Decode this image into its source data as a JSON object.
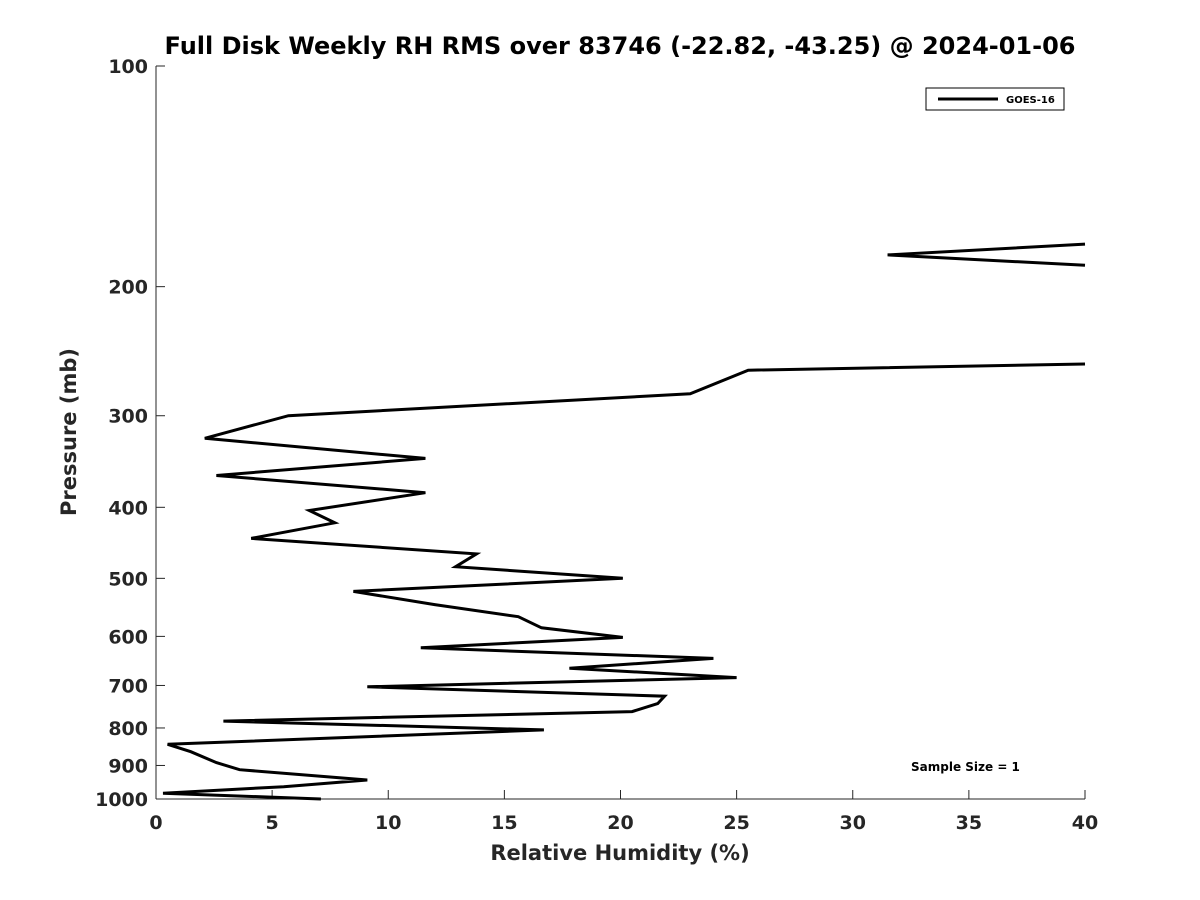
{
  "chart_data": {
    "type": "line",
    "title": "Full Disk Weekly RH RMS over 83746 (-22.82, -43.25) @ 2024-01-06",
    "xlabel": "Relative Humidity (%)",
    "ylabel": "Pressure (mb)",
    "xlim": [
      0,
      40
    ],
    "ylim": [
      100,
      1000
    ],
    "y_scale": "log",
    "y_reversed": true,
    "grid": false,
    "legend_position": "top-right",
    "x_ticks": [
      "0",
      "5",
      "10",
      "15",
      "20",
      "25",
      "30",
      "35",
      "40"
    ],
    "y_ticks": [
      "100",
      "200",
      "300",
      "400",
      "500",
      "600",
      "700",
      "800",
      "900",
      "1000"
    ],
    "annotation": "Sample Size = 1",
    "series": [
      {
        "name": "GOES-16",
        "color": "#000000",
        "segments": [
          [
            [
              40,
              175
            ],
            [
              31.5,
              181
            ],
            [
              40,
              187
            ]
          ],
          [
            [
              40,
              255
            ],
            [
              25.5,
              260
            ],
            [
              23,
              280
            ],
            [
              5.7,
              300
            ],
            [
              2.1,
              322
            ],
            [
              11.6,
              343
            ],
            [
              2.6,
              362
            ],
            [
              11.6,
              382
            ],
            [
              6.6,
              404
            ],
            [
              7.7,
              420
            ],
            [
              4.1,
              441
            ],
            [
              13.8,
              463
            ],
            [
              12.9,
              482
            ],
            [
              20.1,
              500
            ],
            [
              8.5,
              521
            ],
            [
              12,
              543
            ],
            [
              15.6,
              564
            ],
            [
              16.6,
              584
            ],
            [
              20.1,
              602
            ],
            [
              11.4,
              622
            ],
            [
              24,
              643
            ],
            [
              17.8,
              663
            ],
            [
              25,
              683
            ],
            [
              9.1,
              703
            ],
            [
              21.9,
              724
            ],
            [
              21.6,
              741
            ],
            [
              20.5,
              760
            ],
            [
              2.9,
              783
            ],
            [
              16.7,
              805
            ],
            [
              0.5,
              842
            ],
            [
              1.5,
              862
            ],
            [
              2.6,
              892
            ],
            [
              3.6,
              912
            ],
            [
              9.1,
              942
            ],
            [
              5.5,
              962
            ],
            [
              0.3,
              982
            ],
            [
              7.1,
              1000
            ]
          ]
        ]
      }
    ]
  }
}
